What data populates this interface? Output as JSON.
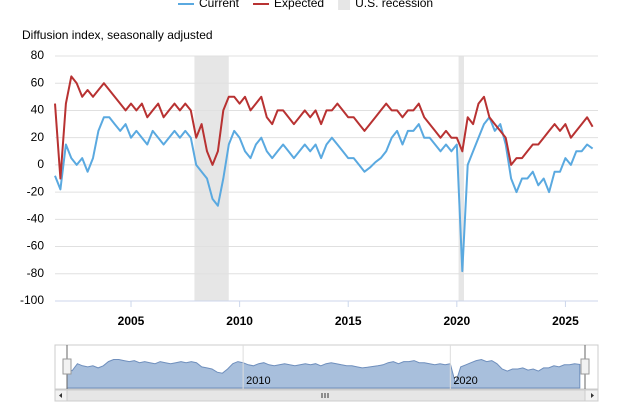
{
  "chart_data": {
    "type": "line",
    "y_axis_label": "Diffusion index, seasonally adjusted",
    "x": [
      2001.5,
      2001.75,
      2002,
      2002.25,
      2002.5,
      2002.75,
      2003,
      2003.25,
      2003.5,
      2003.75,
      2004,
      2004.25,
      2004.5,
      2004.75,
      2005,
      2005.25,
      2005.5,
      2005.75,
      2006,
      2006.25,
      2006.5,
      2006.75,
      2007,
      2007.25,
      2007.5,
      2007.75,
      2008,
      2008.25,
      2008.5,
      2008.75,
      2009,
      2009.25,
      2009.5,
      2009.75,
      2010,
      2010.25,
      2010.5,
      2010.75,
      2011,
      2011.25,
      2011.5,
      2011.75,
      2012,
      2012.25,
      2012.5,
      2012.75,
      2013,
      2013.25,
      2013.5,
      2013.75,
      2014,
      2014.25,
      2014.5,
      2014.75,
      2015,
      2015.25,
      2015.5,
      2015.75,
      2016,
      2016.25,
      2016.5,
      2016.75,
      2017,
      2017.25,
      2017.5,
      2017.75,
      2018,
      2018.25,
      2018.5,
      2018.75,
      2019,
      2019.25,
      2019.5,
      2019.75,
      2020,
      2020.25,
      2020.5,
      2020.75,
      2021,
      2021.25,
      2021.5,
      2021.75,
      2022,
      2022.25,
      2022.5,
      2022.75,
      2023,
      2023.25,
      2023.5,
      2023.75,
      2024,
      2024.25,
      2024.5,
      2024.75,
      2025,
      2025.25,
      2025.5,
      2025.75,
      2026,
      2026.25
    ],
    "series": [
      {
        "name": "Current",
        "color": "#5aa9e0",
        "values": [
          -8,
          -18,
          15,
          5,
          0,
          5,
          -5,
          5,
          25,
          35,
          35,
          30,
          25,
          30,
          20,
          25,
          20,
          15,
          25,
          20,
          15,
          20,
          25,
          20,
          25,
          20,
          0,
          -5,
          -10,
          -25,
          -30,
          -10,
          15,
          25,
          20,
          10,
          5,
          15,
          20,
          10,
          5,
          10,
          15,
          10,
          5,
          10,
          15,
          10,
          15,
          5,
          15,
          20,
          15,
          10,
          5,
          5,
          0,
          -5,
          -2,
          2,
          5,
          10,
          20,
          25,
          15,
          25,
          25,
          30,
          20,
          20,
          15,
          10,
          15,
          10,
          15,
          -78,
          0,
          10,
          20,
          30,
          35,
          25,
          30,
          15,
          -10,
          -20,
          -10,
          -10,
          -5,
          -15,
          -10,
          -20,
          -5,
          -5,
          5,
          0,
          10,
          10,
          15,
          12
        ]
      },
      {
        "name": "Expected",
        "color": "#b83232",
        "values": [
          45,
          -10,
          45,
          65,
          60,
          50,
          55,
          50,
          55,
          60,
          55,
          50,
          45,
          40,
          45,
          40,
          45,
          35,
          40,
          45,
          35,
          40,
          45,
          40,
          45,
          40,
          20,
          30,
          10,
          0,
          10,
          40,
          50,
          50,
          45,
          50,
          40,
          45,
          50,
          35,
          30,
          40,
          40,
          35,
          30,
          35,
          40,
          35,
          40,
          30,
          40,
          40,
          45,
          40,
          35,
          35,
          30,
          25,
          30,
          35,
          40,
          45,
          40,
          40,
          35,
          40,
          40,
          45,
          35,
          30,
          25,
          20,
          25,
          20,
          20,
          10,
          35,
          30,
          45,
          50,
          35,
          30,
          25,
          20,
          0,
          5,
          5,
          10,
          15,
          15,
          20,
          25,
          30,
          25,
          30,
          20,
          25,
          30,
          35,
          28
        ]
      }
    ],
    "recession": {
      "name": "U.S. recession",
      "color": "#e6e6e6",
      "periods": [
        [
          2007.92,
          2009.5
        ],
        [
          2020.08,
          2020.33
        ]
      ]
    },
    "xlim": [
      2001.5,
      2026.5
    ],
    "xticks": [
      2005,
      2010,
      2015,
      2020,
      2025
    ],
    "ylim": [
      -100,
      80
    ],
    "yticks": [
      -100,
      -80,
      -60,
      -40,
      -20,
      0,
      20,
      40,
      60,
      80
    ],
    "grid": true,
    "legend": "top",
    "navigator_ticks": [
      2010,
      2020
    ]
  }
}
